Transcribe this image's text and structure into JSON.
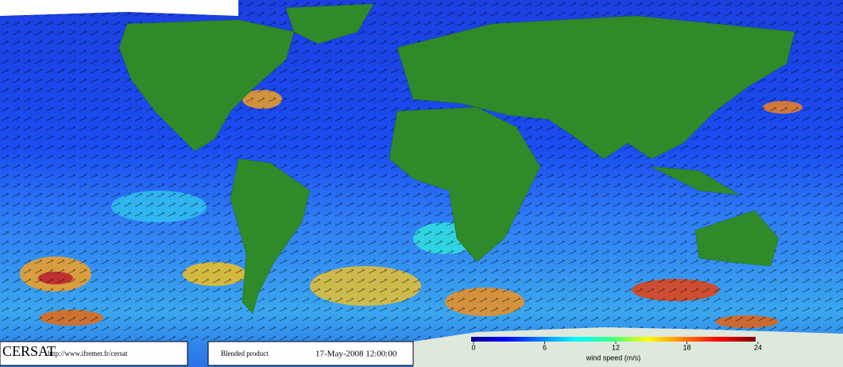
{
  "footer": {
    "logo": "CERSAT",
    "url": "http://www.ifremer.fr/cersat",
    "product": "Blended product",
    "date": "17-May-2008 12:00:00"
  },
  "colorbar": {
    "label": "wind speed (m/s)",
    "range": [
      0,
      24
    ],
    "ticks": [
      0,
      6,
      12,
      18,
      24
    ]
  }
}
